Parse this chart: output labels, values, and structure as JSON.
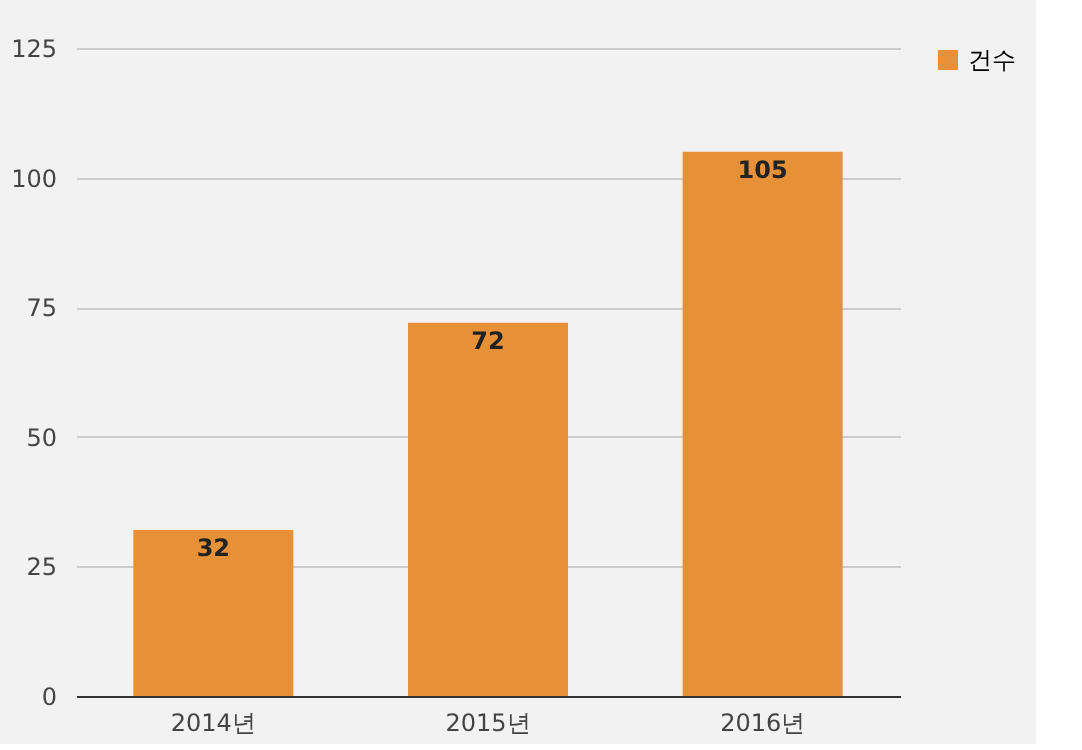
{
  "chart_data": {
    "type": "bar",
    "categories": [
      "2014년",
      "2015년",
      "2016년"
    ],
    "series": [
      {
        "name": "건수",
        "color": "#e69138",
        "values": [
          32,
          72,
          105
        ]
      }
    ],
    "ylim": [
      0,
      125
    ],
    "yticks": [
      0,
      25,
      50,
      75,
      100,
      125
    ],
    "grid": "y",
    "legend": "top right",
    "data_labels": true
  }
}
